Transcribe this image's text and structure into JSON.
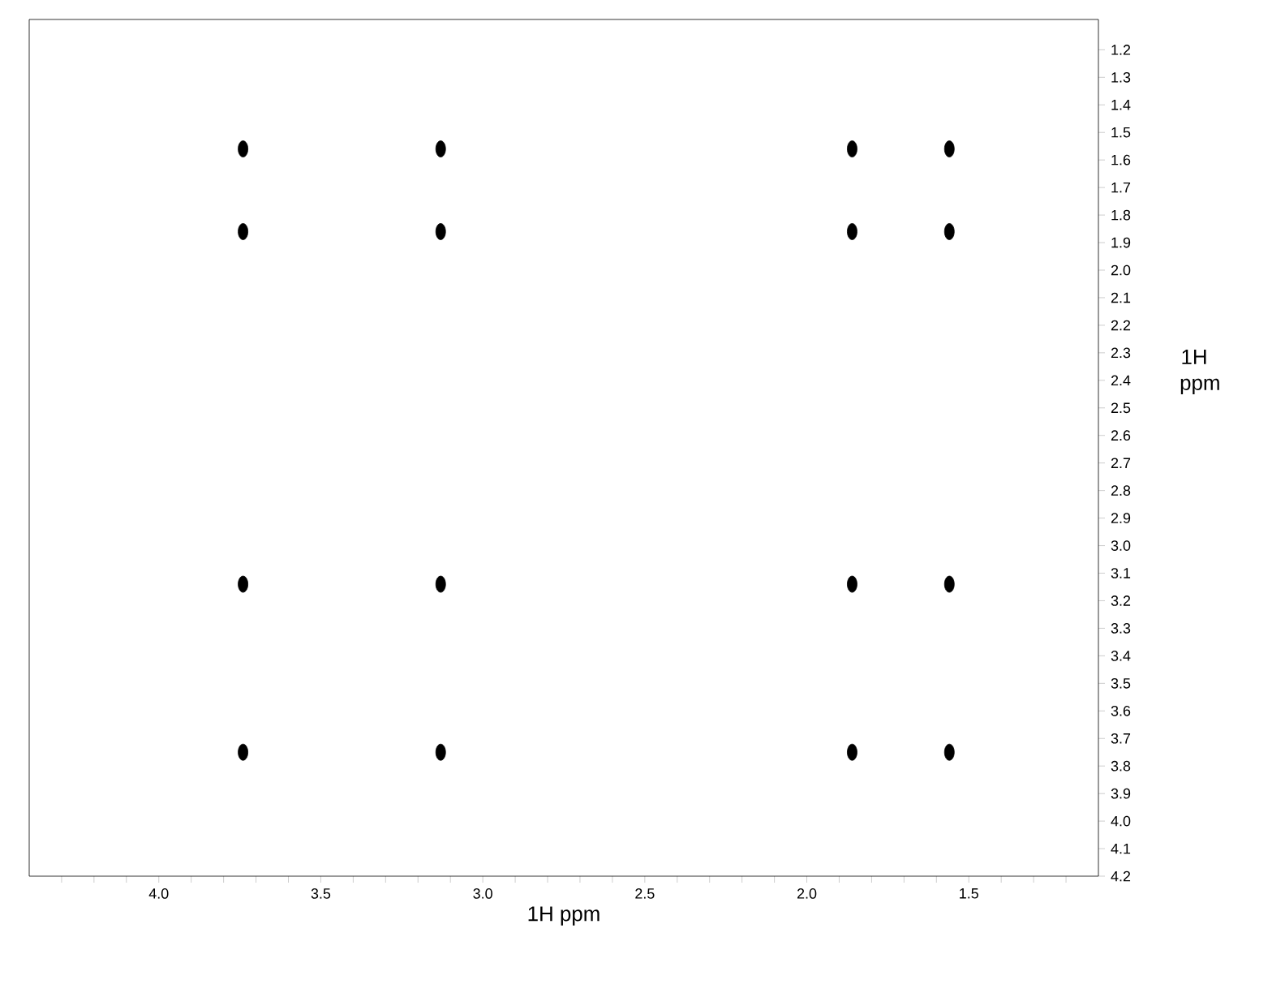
{
  "chart_data": {
    "type": "scatter",
    "xlabel": "1H ppm",
    "ylabel": "1H ppm",
    "x": [
      3.74,
      3.13,
      1.86,
      1.56,
      3.74,
      3.13,
      1.86,
      1.56,
      3.74,
      3.13,
      1.86,
      1.56,
      3.74,
      3.13,
      1.86,
      1.56
    ],
    "values": [
      1.56,
      1.56,
      1.56,
      1.56,
      1.86,
      1.86,
      1.86,
      1.86,
      3.14,
      3.14,
      3.14,
      3.14,
      3.75,
      3.75,
      3.75,
      3.75
    ],
    "color": "#000000",
    "marker": "circle",
    "xlim": [
      4.4,
      1.1
    ],
    "ylim": [
      4.2,
      1.09
    ],
    "xticks": [
      {
        "value": 4.3,
        "label": null
      },
      {
        "value": 4.2,
        "label": null
      },
      {
        "value": 4.1,
        "label": null
      },
      {
        "value": 4.0,
        "label": "4.0"
      },
      {
        "value": 3.9,
        "label": null
      },
      {
        "value": 3.8,
        "label": null
      },
      {
        "value": 3.7,
        "label": null
      },
      {
        "value": 3.6,
        "label": null
      },
      {
        "value": 3.5,
        "label": "3.5"
      },
      {
        "value": 3.4,
        "label": null
      },
      {
        "value": 3.3,
        "label": null
      },
      {
        "value": 3.2,
        "label": null
      },
      {
        "value": 3.1,
        "label": null
      },
      {
        "value": 3.0,
        "label": "3.0"
      },
      {
        "value": 2.9,
        "label": null
      },
      {
        "value": 2.8,
        "label": null
      },
      {
        "value": 2.7,
        "label": null
      },
      {
        "value": 2.6,
        "label": null
      },
      {
        "value": 2.5,
        "label": "2.5"
      },
      {
        "value": 2.4,
        "label": null
      },
      {
        "value": 2.3,
        "label": null
      },
      {
        "value": 2.2,
        "label": null
      },
      {
        "value": 2.1,
        "label": null
      },
      {
        "value": 2.0,
        "label": "2.0"
      },
      {
        "value": 1.9,
        "label": null
      },
      {
        "value": 1.8,
        "label": null
      },
      {
        "value": 1.7,
        "label": null
      },
      {
        "value": 1.6,
        "label": null
      },
      {
        "value": 1.5,
        "label": "1.5"
      },
      {
        "value": 1.4,
        "label": null
      },
      {
        "value": 1.3,
        "label": null
      },
      {
        "value": 1.2,
        "label": null
      }
    ],
    "yticks": [
      1.2,
      1.3,
      1.4,
      1.5,
      1.6,
      1.7,
      1.8,
      1.9,
      {
        "value": 2.0,
        "label": "2.0"
      },
      2.1,
      2.2,
      2.3,
      2.4,
      2.5,
      2.6,
      2.7,
      2.8,
      2.9,
      {
        "value": 3.0,
        "label": "3.0"
      },
      3.1,
      3.2,
      3.3,
      3.4,
      3.5,
      3.6,
      3.7,
      3.8,
      3.9,
      {
        "value": 4.0,
        "label": "4.0"
      },
      4.1,
      4.2
    ]
  }
}
